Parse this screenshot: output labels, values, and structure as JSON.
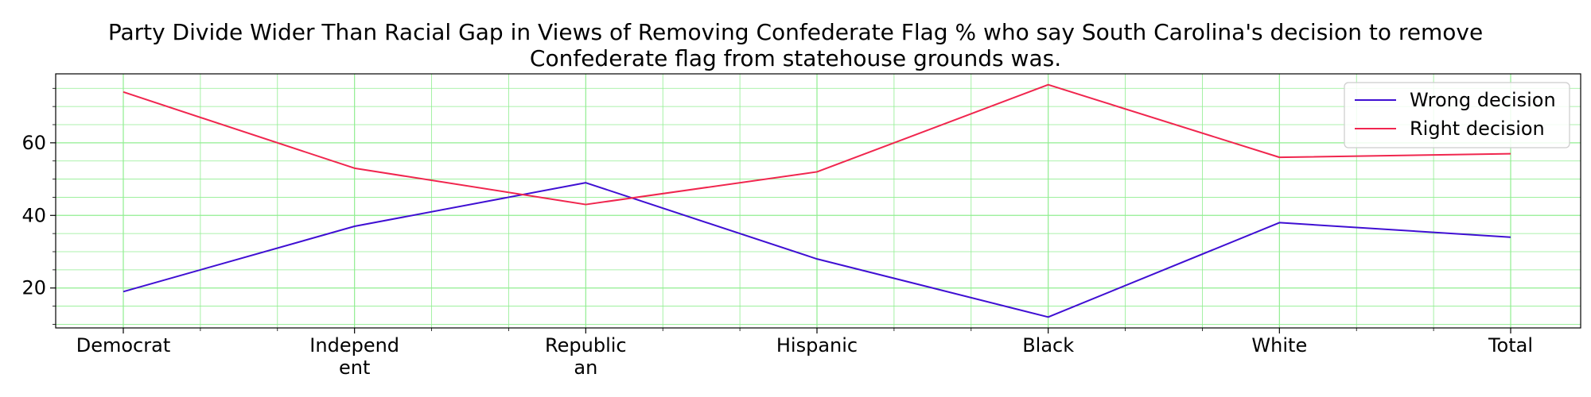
{
  "chart_data": {
    "type": "line",
    "title": "Party Divide Wider Than Racial Gap in Views of Removing Confederate Flag % who say South Carolina's decision to remove Confederate flag from statehouse grounds was.",
    "title_lines": [
      "Party Divide Wider Than Racial Gap in Views of Removing Confederate Flag % who say South Carolina's decision to remove",
      "Confederate flag from statehouse grounds was."
    ],
    "categories": [
      "Democrat",
      "Independent",
      "Republican",
      "Hispanic",
      "Black",
      "White",
      "Total"
    ],
    "category_tick_lines": [
      [
        "Democrat"
      ],
      [
        "Independ",
        "ent"
      ],
      [
        "Republic",
        "an"
      ],
      [
        "Hispanic"
      ],
      [
        "Black"
      ],
      [
        "White"
      ],
      [
        "Total"
      ]
    ],
    "series": [
      {
        "name": "Wrong decision",
        "color": "#3f0fd3",
        "values": [
          19,
          37,
          49,
          28,
          12,
          38,
          34
        ]
      },
      {
        "name": "Right decision",
        "color": "#f0264e",
        "values": [
          74,
          53,
          43,
          52,
          76,
          56,
          57
        ]
      }
    ],
    "xlabel": "",
    "ylabel": "",
    "ylim": [
      9,
      79
    ],
    "y_major_ticks": [
      20,
      40,
      60
    ],
    "y_minor_step": 5,
    "x_minor_per_interval": 2,
    "grid": true,
    "grid_color": "#90ee90",
    "legend_position": "top-right"
  }
}
